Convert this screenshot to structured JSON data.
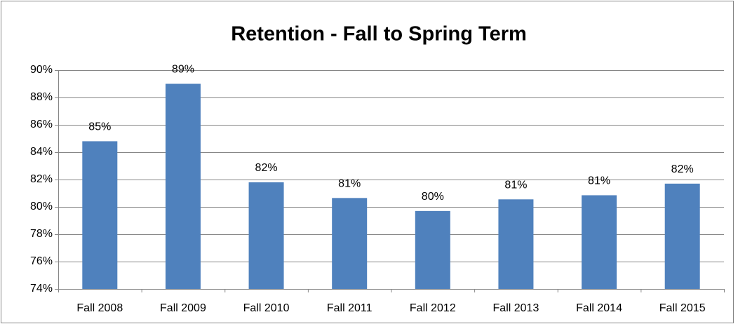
{
  "chart_data": {
    "type": "bar",
    "title": "Retention - Fall to Spring Term",
    "categories": [
      "Fall 2008",
      "Fall 2009",
      "Fall 2010",
      "Fall 2011",
      "Fall 2012",
      "Fall 2013",
      "Fall 2014",
      "Fall 2015"
    ],
    "values": [
      84.8,
      89.0,
      81.8,
      80.65,
      79.7,
      80.55,
      80.85,
      81.7
    ],
    "value_labels": [
      "85%",
      "89%",
      "82%",
      "81%",
      "80%",
      "81%",
      "81%",
      "82%"
    ],
    "color": "#4f81bd",
    "ylim": [
      74,
      90
    ],
    "yticks": [
      {
        "value": 74,
        "label": "74%"
      },
      {
        "value": 76,
        "label": "76%"
      },
      {
        "value": 78,
        "label": "78%"
      },
      {
        "value": 80,
        "label": "80%"
      },
      {
        "value": 82,
        "label": "82%"
      },
      {
        "value": 84,
        "label": "84%"
      },
      {
        "value": 86,
        "label": "86%"
      },
      {
        "value": 88,
        "label": "88%"
      },
      {
        "value": 90,
        "label": "90%"
      }
    ],
    "grid": true
  }
}
